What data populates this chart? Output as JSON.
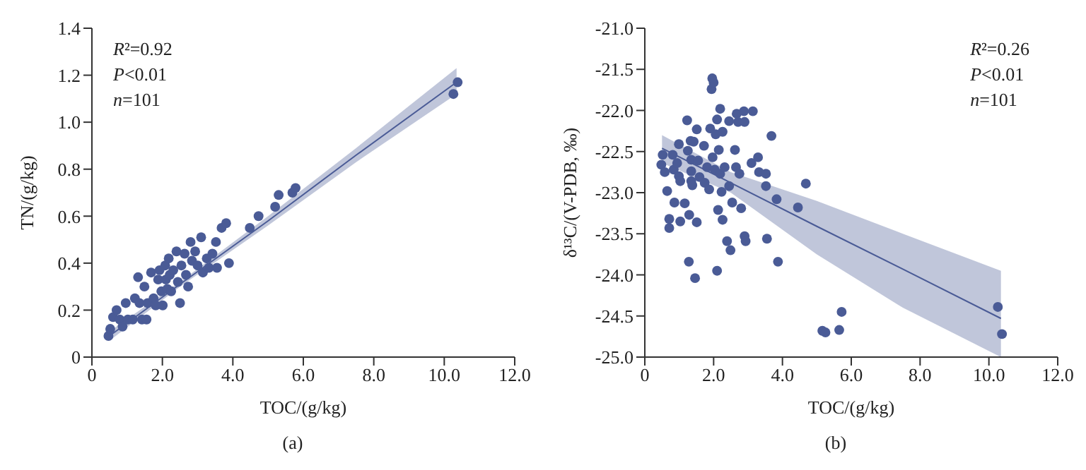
{
  "chart_data": [
    {
      "type": "scatter",
      "xlabel": "TOC/(g/kg)",
      "ylabel": "TN/(g/kg)",
      "annotations": [
        "R²=0.92",
        "P<0.01",
        "n=101",
        "(a)"
      ],
      "xlim": [
        0,
        12
      ],
      "xticks": [
        0,
        {
          "value": 2,
          "label": "2.0"
        },
        {
          "value": 4,
          "label": "4.0"
        },
        {
          "value": 6,
          "label": "6.0"
        },
        {
          "value": 8,
          "label": "8.0"
        },
        {
          "value": 10,
          "label": "10.0"
        },
        {
          "value": 12,
          "label": "12.0"
        }
      ],
      "ylim": [
        0,
        1.4
      ],
      "yticks": [
        0,
        0.2,
        0.4,
        0.6,
        0.8,
        {
          "value": 1,
          "label": "1.0"
        },
        1.2,
        1.4
      ],
      "grid": false,
      "marker": "circle",
      "series": [
        {
          "type": "scatter",
          "color": "#4a5b96",
          "x": [
            0.47,
            0.52,
            0.6,
            0.7,
            0.79,
            0.87,
            0.96,
            1.02,
            1.16,
            1.22,
            1.31,
            1.35,
            1.42,
            1.49,
            1.55,
            1.58,
            1.68,
            1.75,
            1.81,
            1.88,
            1.92,
            1.97,
            2.01,
            2.08,
            2.1,
            2.14,
            2.18,
            2.21,
            2.25,
            2.31,
            2.4,
            2.44,
            2.5,
            2.54,
            2.63,
            2.67,
            2.73,
            2.8,
            2.84,
            2.93,
            3.0,
            3.1,
            3.15,
            3.26,
            3.32,
            3.42,
            3.52,
            3.55,
            3.68,
            3.81,
            3.89,
            4.48,
            4.73,
            5.2,
            5.3,
            5.69,
            5.78,
            10.26,
            10.38
          ],
          "values": [
            0.09,
            0.12,
            0.17,
            0.2,
            0.16,
            0.13,
            0.23,
            0.16,
            0.16,
            0.25,
            0.34,
            0.23,
            0.16,
            0.3,
            0.16,
            0.23,
            0.36,
            0.25,
            0.22,
            0.33,
            0.37,
            0.28,
            0.22,
            0.39,
            0.33,
            0.29,
            0.42,
            0.35,
            0.28,
            0.37,
            0.45,
            0.32,
            0.23,
            0.39,
            0.44,
            0.35,
            0.3,
            0.49,
            0.41,
            0.45,
            0.39,
            0.51,
            0.36,
            0.42,
            0.38,
            0.44,
            0.49,
            0.38,
            0.55,
            0.57,
            0.4,
            0.55,
            0.6,
            0.64,
            0.69,
            0.7,
            0.72,
            1.12,
            1.17
          ]
        },
        {
          "type": "line",
          "color": "#4a5b96",
          "marker": "none",
          "x": [
            0.5,
            2.5,
            5,
            7.5,
            10.35
          ],
          "values": [
            0.09,
            0.31,
            0.58,
            0.86,
            1.17
          ],
          "lower": [
            0.07,
            0.3,
            0.56,
            0.83,
            1.12
          ],
          "upper": [
            0.11,
            0.32,
            0.6,
            0.89,
            1.23
          ]
        }
      ]
    },
    {
      "type": "scatter",
      "xlabel": "TOC/(g/kg)",
      "ylabel": "δ¹³C/(V-PDB, ‰)",
      "annotations": [
        "R²=0.26",
        "P<0.01",
        "n=101",
        "(b)"
      ],
      "xlim": [
        0,
        12
      ],
      "xticks": [
        0,
        {
          "value": 2,
          "label": "2.0"
        },
        {
          "value": 4,
          "label": "4.0"
        },
        {
          "value": 6,
          "label": "6.0"
        },
        {
          "value": 8,
          "label": "8.0"
        },
        {
          "value": 10,
          "label": "10.0"
        },
        {
          "value": 12,
          "label": "12.0"
        }
      ],
      "ylim": [
        -25,
        -21
      ],
      "yticks": [
        {
          "value": -25,
          "label": "-25.0"
        },
        -24.5,
        {
          "value": -24,
          "label": "-24.0"
        },
        -23.5,
        {
          "value": -23,
          "label": "-23.0"
        },
        -22.5,
        {
          "value": -22,
          "label": "-22.0"
        },
        -21.5,
        {
          "value": -21,
          "label": "-21.0"
        }
      ],
      "grid": false,
      "marker": "circle",
      "series": [
        {
          "type": "scatter",
          "color": "#4a5b96",
          "x": [
            0.52,
            0.48,
            0.58,
            0.65,
            0.71,
            0.71,
            0.81,
            0.84,
            0.86,
            0.94,
            0.99,
            0.99,
            1.03,
            1.03,
            1.16,
            1.23,
            1.25,
            1.29,
            1.28,
            1.33,
            1.35,
            1.35,
            1.35,
            1.38,
            1.42,
            1.46,
            1.51,
            1.51,
            1.55,
            1.59,
            1.72,
            1.74,
            1.81,
            1.87,
            1.9,
            1.94,
            1.96,
            1.97,
            2.0,
            2.03,
            2.06,
            2.1,
            2.13,
            2.1,
            2.15,
            2.19,
            2.19,
            2.23,
            2.26,
            2.26,
            2.32,
            2.39,
            2.45,
            2.45,
            2.49,
            2.54,
            2.62,
            2.65,
            2.67,
            2.71,
            2.75,
            2.8,
            2.88,
            2.9,
            2.9,
            2.93,
            3.14,
            3.1,
            3.29,
            3.32,
            3.52,
            3.52,
            3.55,
            3.68,
            3.83,
            3.87,
            4.45,
            4.68,
            5.16,
            5.25,
            5.65,
            5.72,
            10.26,
            10.38
          ],
          "values": [
            -22.54,
            -22.66,
            -22.75,
            -22.98,
            -23.32,
            -23.43,
            -22.54,
            -22.72,
            -23.12,
            -22.64,
            -22.41,
            -22.8,
            -22.86,
            -23.35,
            -23.13,
            -22.12,
            -22.49,
            -23.27,
            -23.84,
            -22.37,
            -22.6,
            -22.74,
            -22.86,
            -22.91,
            -22.38,
            -24.04,
            -22.23,
            -23.36,
            -22.61,
            -22.81,
            -22.43,
            -22.88,
            -22.69,
            -22.96,
            -22.22,
            -21.74,
            -21.61,
            -22.57,
            -21.66,
            -22.72,
            -22.29,
            -22.11,
            -23.21,
            -23.95,
            -22.48,
            -22.77,
            -21.98,
            -22.99,
            -23.33,
            -22.26,
            -22.69,
            -23.59,
            -22.92,
            -22.13,
            -23.7,
            -23.12,
            -22.48,
            -22.69,
            -22.04,
            -22.14,
            -22.77,
            -23.19,
            -22.01,
            -22.14,
            -23.53,
            -23.59,
            -22.01,
            -22.64,
            -22.57,
            -22.75,
            -22.77,
            -22.92,
            -23.56,
            -22.31,
            -23.08,
            -23.84,
            -23.18,
            -22.89,
            -24.68,
            -24.7,
            -24.67,
            -24.45,
            -24.39,
            -24.72
          ]
        },
        {
          "type": "line",
          "color": "#4a5b96",
          "marker": "none",
          "x": [
            0.5,
            2.5,
            5,
            7.5,
            10.35
          ],
          "values": [
            -22.46,
            -22.88,
            -23.41,
            -23.93,
            -24.53
          ],
          "lower": [
            -22.64,
            -23.0,
            -23.75,
            -24.4,
            -25.0
          ],
          "upper": [
            -22.3,
            -22.75,
            -23.1,
            -23.5,
            -23.95
          ]
        }
      ]
    }
  ]
}
